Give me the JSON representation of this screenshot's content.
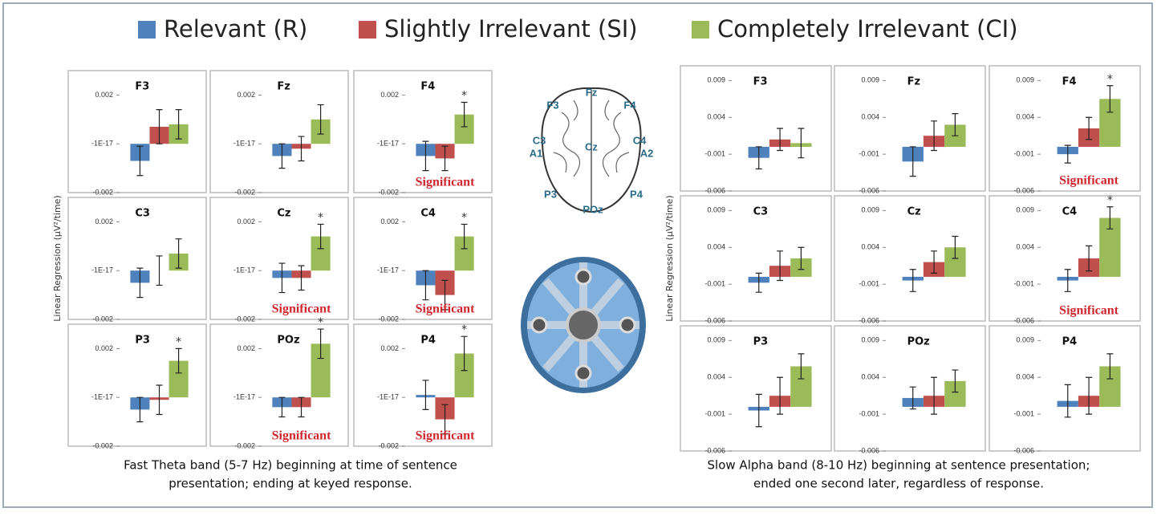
{
  "legend": [
    {
      "name": "Relevant (R)",
      "color": "#4f81bd"
    },
    {
      "name": "Slightly Irrelevant (SI)",
      "color": "#c0504d"
    },
    {
      "name": "Completely Irrelevant (CI)",
      "color": "#9bbb59"
    }
  ],
  "brain_labels": [
    "Fz",
    "F3",
    "F4",
    "C3",
    "Cz",
    "C4",
    "A1",
    "A2",
    "P3",
    "POz",
    "P4"
  ],
  "chart_data": [
    {
      "type": "bar",
      "caption": [
        "Fast Theta band (5-7 Hz) beginning at time of sentence",
        "presentation; ending at keyed response."
      ],
      "y_label": "Linear Regression (μV²/time)",
      "ylim": [
        -0.002,
        0.003
      ],
      "yticks": [
        0.002,
        {
          "value": -1e-17,
          "label": "-1E-17"
        },
        -0.002
      ],
      "panels": [
        {
          "title": "F3",
          "values": [
            -0.0007,
            0.0007,
            0.0008
          ],
          "errors": [
            0.0006,
            0.0007,
            0.0006
          ]
        },
        {
          "title": "Fz",
          "values": [
            -0.0005,
            -0.0002,
            0.001
          ],
          "errors": [
            0.0005,
            0.0005,
            0.0006
          ]
        },
        {
          "title": "F4",
          "values": [
            -0.0005,
            -0.0006,
            0.0012
          ],
          "errors": [
            0.0006,
            0.0005,
            0.0005
          ],
          "star": "*",
          "note": "Significant"
        },
        {
          "title": "C3",
          "values": [
            -0.0005,
            0.0,
            0.0007
          ],
          "errors": [
            0.0006,
            0.0006,
            0.0006
          ]
        },
        {
          "title": "Cz",
          "values": [
            -0.0003,
            -0.0003,
            0.0014
          ],
          "errors": [
            0.0006,
            0.0005,
            0.0005
          ],
          "star": "*",
          "note": "Significant"
        },
        {
          "title": "C4",
          "values": [
            -0.0006,
            -0.001,
            0.0014
          ],
          "errors": [
            0.0006,
            0.0006,
            0.0005
          ],
          "star": "*",
          "note": "Significant"
        },
        {
          "title": "P3",
          "values": [
            -0.0005,
            -0.0001,
            0.0015
          ],
          "errors": [
            0.0005,
            0.0006,
            0.0005
          ],
          "star": "*"
        },
        {
          "title": "POz",
          "values": [
            -0.0004,
            -0.0004,
            0.0022
          ],
          "errors": [
            0.0004,
            0.0004,
            0.0006
          ],
          "star": "*",
          "note": "Significant"
        },
        {
          "title": "P4",
          "values": [
            0.0001,
            -0.0009,
            0.0018
          ],
          "errors": [
            0.0006,
            0.0006,
            0.0007
          ],
          "star": "*",
          "note": "Significant"
        }
      ]
    },
    {
      "type": "bar",
      "caption": [
        "Slow Alpha band (8-10 Hz) beginning at sentence presentation;",
        "ended one second later, regardless of response."
      ],
      "y_label": "Linear Regression (μV²/time)",
      "ylim": [
        -0.006,
        0.011
      ],
      "yticks": [
        0.009,
        0.004,
        -0.001,
        -0.006
      ],
      "panels": [
        {
          "title": "F3",
          "values": [
            -0.0015,
            0.001,
            0.0005
          ],
          "errors": [
            0.0015,
            0.0015,
            0.002
          ]
        },
        {
          "title": "Fz",
          "values": [
            -0.002,
            0.0015,
            0.003
          ],
          "errors": [
            0.002,
            0.002,
            0.0015
          ]
        },
        {
          "title": "F4",
          "values": [
            -0.001,
            0.0025,
            0.0065
          ],
          "errors": [
            0.0012,
            0.0015,
            0.0018
          ],
          "star": "*",
          "note": "Significant"
        },
        {
          "title": "C3",
          "values": [
            -0.0008,
            0.0015,
            0.0025
          ],
          "errors": [
            0.0013,
            0.002,
            0.0015
          ]
        },
        {
          "title": "Cz",
          "values": [
            -0.0005,
            0.002,
            0.004
          ],
          "errors": [
            0.0015,
            0.0015,
            0.0015
          ],
          "star": null
        },
        {
          "title": "C4",
          "values": [
            -0.0005,
            0.0025,
            0.008
          ],
          "errors": [
            0.0015,
            0.0017,
            0.0015
          ],
          "star": "*",
          "note": "Significant"
        },
        {
          "title": "P3",
          "values": [
            -0.0005,
            0.0015,
            0.0055
          ],
          "errors": [
            0.0022,
            0.0025,
            0.0017
          ]
        },
        {
          "title": "POz",
          "values": [
            0.0012,
            0.0015,
            0.0035
          ],
          "errors": [
            0.0015,
            0.0025,
            0.0015
          ]
        },
        {
          "title": "P4",
          "values": [
            0.0008,
            0.0015,
            0.0055
          ],
          "errors": [
            0.0022,
            0.0025,
            0.0017
          ]
        }
      ]
    }
  ]
}
